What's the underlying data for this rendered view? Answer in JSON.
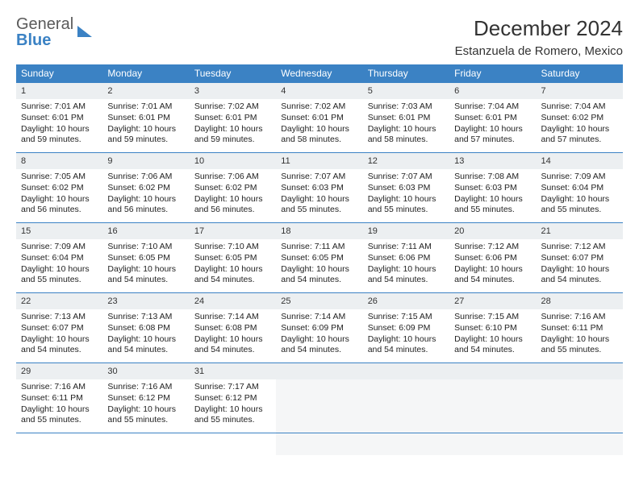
{
  "logo": {
    "line1": "General",
    "line2": "Blue"
  },
  "title": "December 2024",
  "location": "Estanzuela de Romero, Mexico",
  "colors": {
    "header_bg": "#3b82c4",
    "header_text": "#ffffff",
    "daynum_bg": "#eceff1",
    "border": "#3b82c4",
    "text": "#222222",
    "logo_gray": "#5a5a5a",
    "logo_blue": "#3b82c4"
  },
  "weekdays": [
    "Sunday",
    "Monday",
    "Tuesday",
    "Wednesday",
    "Thursday",
    "Friday",
    "Saturday"
  ],
  "weeks": [
    [
      {
        "n": "1",
        "sunrise": "Sunrise: 7:01 AM",
        "sunset": "Sunset: 6:01 PM",
        "day": "Daylight: 10 hours and 59 minutes."
      },
      {
        "n": "2",
        "sunrise": "Sunrise: 7:01 AM",
        "sunset": "Sunset: 6:01 PM",
        "day": "Daylight: 10 hours and 59 minutes."
      },
      {
        "n": "3",
        "sunrise": "Sunrise: 7:02 AM",
        "sunset": "Sunset: 6:01 PM",
        "day": "Daylight: 10 hours and 59 minutes."
      },
      {
        "n": "4",
        "sunrise": "Sunrise: 7:02 AM",
        "sunset": "Sunset: 6:01 PM",
        "day": "Daylight: 10 hours and 58 minutes."
      },
      {
        "n": "5",
        "sunrise": "Sunrise: 7:03 AM",
        "sunset": "Sunset: 6:01 PM",
        "day": "Daylight: 10 hours and 58 minutes."
      },
      {
        "n": "6",
        "sunrise": "Sunrise: 7:04 AM",
        "sunset": "Sunset: 6:01 PM",
        "day": "Daylight: 10 hours and 57 minutes."
      },
      {
        "n": "7",
        "sunrise": "Sunrise: 7:04 AM",
        "sunset": "Sunset: 6:02 PM",
        "day": "Daylight: 10 hours and 57 minutes."
      }
    ],
    [
      {
        "n": "8",
        "sunrise": "Sunrise: 7:05 AM",
        "sunset": "Sunset: 6:02 PM",
        "day": "Daylight: 10 hours and 56 minutes."
      },
      {
        "n": "9",
        "sunrise": "Sunrise: 7:06 AM",
        "sunset": "Sunset: 6:02 PM",
        "day": "Daylight: 10 hours and 56 minutes."
      },
      {
        "n": "10",
        "sunrise": "Sunrise: 7:06 AM",
        "sunset": "Sunset: 6:02 PM",
        "day": "Daylight: 10 hours and 56 minutes."
      },
      {
        "n": "11",
        "sunrise": "Sunrise: 7:07 AM",
        "sunset": "Sunset: 6:03 PM",
        "day": "Daylight: 10 hours and 55 minutes."
      },
      {
        "n": "12",
        "sunrise": "Sunrise: 7:07 AM",
        "sunset": "Sunset: 6:03 PM",
        "day": "Daylight: 10 hours and 55 minutes."
      },
      {
        "n": "13",
        "sunrise": "Sunrise: 7:08 AM",
        "sunset": "Sunset: 6:03 PM",
        "day": "Daylight: 10 hours and 55 minutes."
      },
      {
        "n": "14",
        "sunrise": "Sunrise: 7:09 AM",
        "sunset": "Sunset: 6:04 PM",
        "day": "Daylight: 10 hours and 55 minutes."
      }
    ],
    [
      {
        "n": "15",
        "sunrise": "Sunrise: 7:09 AM",
        "sunset": "Sunset: 6:04 PM",
        "day": "Daylight: 10 hours and 55 minutes."
      },
      {
        "n": "16",
        "sunrise": "Sunrise: 7:10 AM",
        "sunset": "Sunset: 6:05 PM",
        "day": "Daylight: 10 hours and 54 minutes."
      },
      {
        "n": "17",
        "sunrise": "Sunrise: 7:10 AM",
        "sunset": "Sunset: 6:05 PM",
        "day": "Daylight: 10 hours and 54 minutes."
      },
      {
        "n": "18",
        "sunrise": "Sunrise: 7:11 AM",
        "sunset": "Sunset: 6:05 PM",
        "day": "Daylight: 10 hours and 54 minutes."
      },
      {
        "n": "19",
        "sunrise": "Sunrise: 7:11 AM",
        "sunset": "Sunset: 6:06 PM",
        "day": "Daylight: 10 hours and 54 minutes."
      },
      {
        "n": "20",
        "sunrise": "Sunrise: 7:12 AM",
        "sunset": "Sunset: 6:06 PM",
        "day": "Daylight: 10 hours and 54 minutes."
      },
      {
        "n": "21",
        "sunrise": "Sunrise: 7:12 AM",
        "sunset": "Sunset: 6:07 PM",
        "day": "Daylight: 10 hours and 54 minutes."
      }
    ],
    [
      {
        "n": "22",
        "sunrise": "Sunrise: 7:13 AM",
        "sunset": "Sunset: 6:07 PM",
        "day": "Daylight: 10 hours and 54 minutes."
      },
      {
        "n": "23",
        "sunrise": "Sunrise: 7:13 AM",
        "sunset": "Sunset: 6:08 PM",
        "day": "Daylight: 10 hours and 54 minutes."
      },
      {
        "n": "24",
        "sunrise": "Sunrise: 7:14 AM",
        "sunset": "Sunset: 6:08 PM",
        "day": "Daylight: 10 hours and 54 minutes."
      },
      {
        "n": "25",
        "sunrise": "Sunrise: 7:14 AM",
        "sunset": "Sunset: 6:09 PM",
        "day": "Daylight: 10 hours and 54 minutes."
      },
      {
        "n": "26",
        "sunrise": "Sunrise: 7:15 AM",
        "sunset": "Sunset: 6:09 PM",
        "day": "Daylight: 10 hours and 54 minutes."
      },
      {
        "n": "27",
        "sunrise": "Sunrise: 7:15 AM",
        "sunset": "Sunset: 6:10 PM",
        "day": "Daylight: 10 hours and 54 minutes."
      },
      {
        "n": "28",
        "sunrise": "Sunrise: 7:16 AM",
        "sunset": "Sunset: 6:11 PM",
        "day": "Daylight: 10 hours and 55 minutes."
      }
    ],
    [
      {
        "n": "29",
        "sunrise": "Sunrise: 7:16 AM",
        "sunset": "Sunset: 6:11 PM",
        "day": "Daylight: 10 hours and 55 minutes."
      },
      {
        "n": "30",
        "sunrise": "Sunrise: 7:16 AM",
        "sunset": "Sunset: 6:12 PM",
        "day": "Daylight: 10 hours and 55 minutes."
      },
      {
        "n": "31",
        "sunrise": "Sunrise: 7:17 AM",
        "sunset": "Sunset: 6:12 PM",
        "day": "Daylight: 10 hours and 55 minutes."
      },
      null,
      null,
      null,
      null
    ]
  ]
}
